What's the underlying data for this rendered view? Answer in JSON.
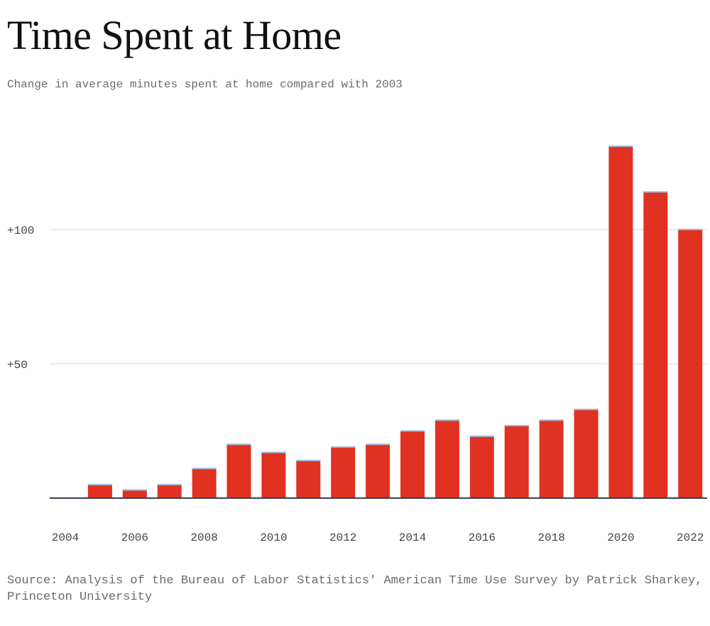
{
  "chart_data": {
    "type": "bar",
    "title": "Time Spent at Home",
    "subtitle": "Change in average minutes spent at home compared with 2003",
    "source": "Source: Analysis of the Bureau of Labor Statistics' American Time Use Survey by Patrick Sharkey, Princeton University",
    "categories": [
      "2004",
      "2005",
      "2006",
      "2007",
      "2008",
      "2009",
      "2010",
      "2011",
      "2012",
      "2013",
      "2014",
      "2015",
      "2016",
      "2017",
      "2018",
      "2019",
      "2020",
      "2021",
      "2022"
    ],
    "values": [
      0,
      5,
      3,
      5,
      11,
      20,
      17,
      14,
      19,
      20,
      25,
      29,
      23,
      27,
      29,
      33,
      131,
      114,
      100
    ],
    "xtick_labels": [
      "2004",
      "2006",
      "2008",
      "2010",
      "2012",
      "2014",
      "2016",
      "2018",
      "2020",
      "2022"
    ],
    "yticks": [
      {
        "value": 50,
        "label": "+50"
      },
      {
        "value": 100,
        "label": "+100"
      }
    ],
    "ylim": [
      0,
      140
    ],
    "xlabel": "",
    "ylabel": "",
    "bar_color": "#e03121",
    "cap_color": "#9cb8d8",
    "grid": true
  }
}
